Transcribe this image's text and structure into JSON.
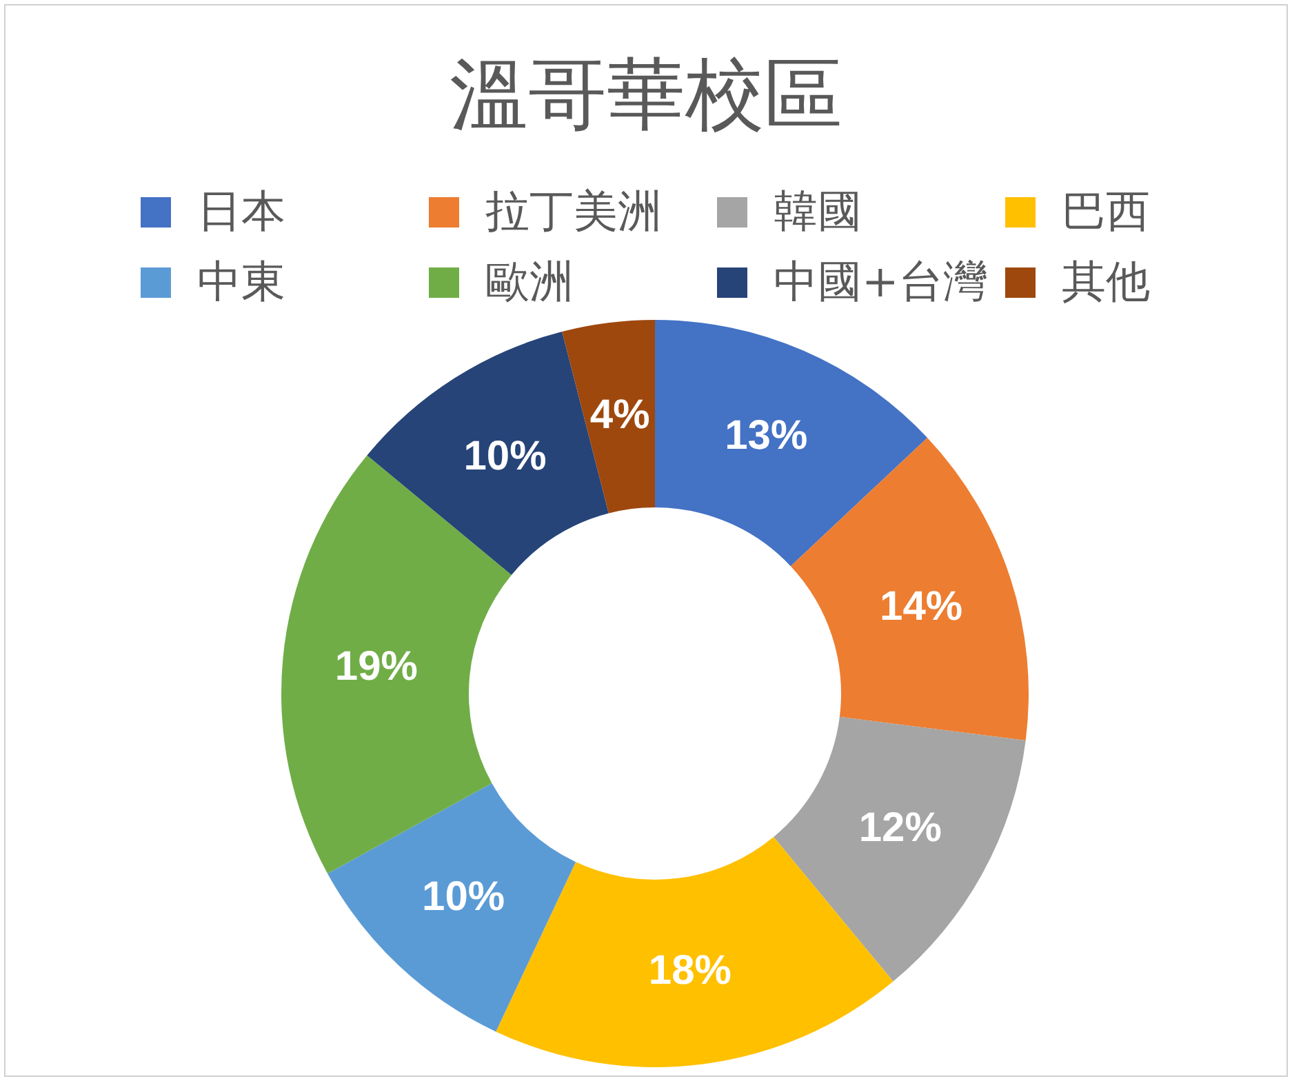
{
  "chart_data": {
    "type": "donut",
    "title": "溫哥華校區",
    "categories": [
      "日本",
      "拉丁美洲",
      "韓國",
      "巴西",
      "中東",
      "歐洲",
      "中國+台灣",
      "其他"
    ],
    "values": [
      13,
      14,
      12,
      18,
      10,
      19,
      10,
      4
    ],
    "colors": [
      "#4472c4",
      "#ed7d31",
      "#a5a5a5",
      "#ffc000",
      "#5b9bd5",
      "#70ad47",
      "#264478",
      "#9e480e"
    ],
    "value_labels": [
      "13%",
      "14%",
      "12%",
      "18%",
      "10%",
      "19%",
      "10%",
      "4%"
    ],
    "legend": "top"
  }
}
